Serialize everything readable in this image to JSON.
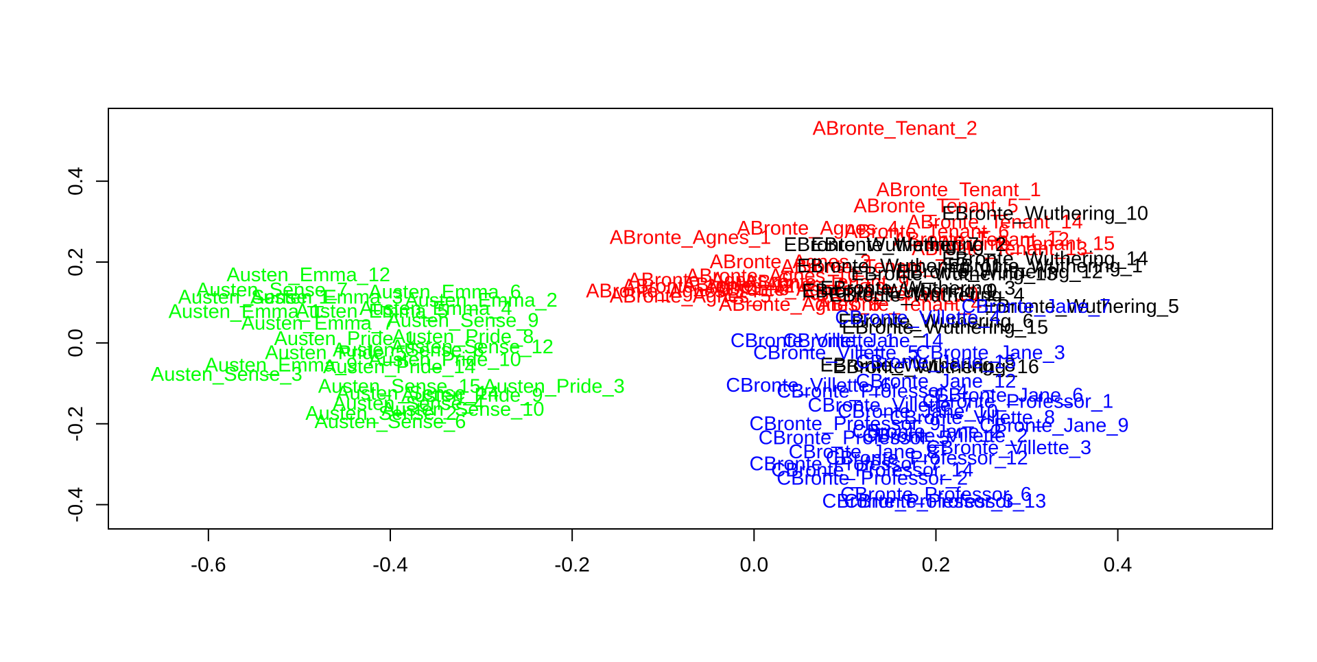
{
  "chart_data": {
    "type": "scatter",
    "title": "",
    "xlabel": "",
    "ylabel": "",
    "xlim": [
      -0.71,
      0.57
    ],
    "ylim": [
      -0.46,
      0.58
    ],
    "x_ticks": [
      "-0.6",
      "-0.4",
      "-0.2",
      "0.0",
      "0.2",
      "0.4"
    ],
    "y_ticks": [
      "-0.4",
      "-0.2",
      "0.0",
      "0.2",
      "0.4"
    ],
    "grid": false,
    "legend": "none",
    "colors": {
      "Austen": "#00ff00",
      "ABronte": "#ff0000",
      "CBronte": "#0000ff",
      "EBronte": "#000000",
      "axes": "#000000"
    },
    "series": [
      {
        "group": "Austen",
        "color": "#00ff00",
        "points": [
          {
            "label": "Austen_Emma_12",
            "x": -0.49,
            "y": 0.168
          },
          {
            "label": "Austen_Sense_7",
            "x": -0.53,
            "y": 0.13
          },
          {
            "label": "Austen_Emma_6",
            "x": -0.34,
            "y": 0.125
          },
          {
            "label": "Austen_Sense_1",
            "x": -0.55,
            "y": 0.113
          },
          {
            "label": "Austen_Emma_3",
            "x": -0.47,
            "y": 0.113
          },
          {
            "label": "Austen_Emma_2",
            "x": -0.3,
            "y": 0.105
          },
          {
            "label": "Austen_Emma_4",
            "x": -0.35,
            "y": 0.085
          },
          {
            "label": "Austen_Emma_1",
            "x": -0.56,
            "y": 0.077
          },
          {
            "label": "Austen_Emma_5",
            "x": -0.42,
            "y": 0.078
          },
          {
            "label": "Austen_Sense_9",
            "x": -0.32,
            "y": 0.055
          },
          {
            "label": "Austen_Emma_7",
            "x": -0.48,
            "y": 0.048
          },
          {
            "label": "Austen_Pride_8",
            "x": -0.32,
            "y": 0.015
          },
          {
            "label": "Austen_Pride_1",
            "x": -0.45,
            "y": 0.01
          },
          {
            "label": "Austen_Sense_12",
            "x": -0.31,
            "y": -0.01
          },
          {
            "label": "Austen_Sense_8",
            "x": -0.38,
            "y": -0.018
          },
          {
            "label": "Austen_Pride_5",
            "x": -0.46,
            "y": -0.025
          },
          {
            "label": "Austen_Pride_10",
            "x": -0.34,
            "y": -0.042
          },
          {
            "label": "Austen_Emma_9",
            "x": -0.52,
            "y": -0.055
          },
          {
            "label": "Austen_Pride_14",
            "x": -0.39,
            "y": -0.06
          },
          {
            "label": "Austen_Sense_3",
            "x": -0.58,
            "y": -0.078
          },
          {
            "label": "Austen_Pride_3",
            "x": -0.22,
            "y": -0.108
          },
          {
            "label": "Austen_Sense_15",
            "x": -0.39,
            "y": -0.108
          },
          {
            "label": "Austen_Sense_14",
            "x": -0.37,
            "y": -0.125
          },
          {
            "label": "Austen_Pride_9",
            "x": -0.31,
            "y": -0.13
          },
          {
            "label": "Austen_Sense_4",
            "x": -0.38,
            "y": -0.15
          },
          {
            "label": "Austen_Sense_10",
            "x": -0.32,
            "y": -0.165
          },
          {
            "label": "Austen_Sense_2",
            "x": -0.41,
            "y": -0.175
          },
          {
            "label": "Austen_Sense_6",
            "x": -0.4,
            "y": -0.195
          }
        ]
      },
      {
        "group": "ABronte",
        "color": "#ff0000",
        "points": [
          {
            "label": "ABronte_Tenant_2",
            "x": 0.155,
            "y": 0.53
          },
          {
            "label": "ABronte_Tenant_1",
            "x": 0.225,
            "y": 0.378
          },
          {
            "label": "ABronte_Tenant_5",
            "x": 0.2,
            "y": 0.338
          },
          {
            "label": "ABronte_Tenant_14",
            "x": 0.265,
            "y": 0.298
          },
          {
            "label": "ABronte_Agnes_4",
            "x": 0.07,
            "y": 0.283
          },
          {
            "label": "ABronte_Tenant_6",
            "x": 0.19,
            "y": 0.275
          },
          {
            "label": "ABronte_Agnes_1",
            "x": -0.07,
            "y": 0.26
          },
          {
            "label": "ABronte_Tenant_12",
            "x": 0.25,
            "y": 0.255
          },
          {
            "label": "ABronte_Tenant_15",
            "x": 0.3,
            "y": 0.245
          },
          {
            "label": "ABronte_Tenant_13",
            "x": 0.27,
            "y": 0.232
          },
          {
            "label": "ABronte_Agnes_2",
            "x": 0.04,
            "y": 0.2
          },
          {
            "label": "ABronte_Tenant_7",
            "x": 0.12,
            "y": 0.188
          },
          {
            "label": "ABronte_Agnes_10",
            "x": 0.02,
            "y": 0.165
          },
          {
            "label": "ABronte_Agnes_6",
            "x": -0.05,
            "y": 0.155
          },
          {
            "label": "ABronte_Tenant_9",
            "x": 0.08,
            "y": 0.15
          },
          {
            "label": "ABronte_Agnes_12",
            "x": -0.05,
            "y": 0.14
          },
          {
            "label": "ABronte_Agnes_7",
            "x": 0.01,
            "y": 0.143
          },
          {
            "label": "ABronte_Agnes_13",
            "x": 0.05,
            "y": 0.132
          },
          {
            "label": "ABronte_Tenant_10",
            "x": 0.15,
            "y": 0.12
          },
          {
            "label": "ABronte_Agnes_14",
            "x": -0.09,
            "y": 0.128
          },
          {
            "label": "ABronte_Agnes_5",
            "x": -0.07,
            "y": 0.115
          },
          {
            "label": "ABronte_Tenant_4",
            "x": 0.16,
            "y": 0.095
          },
          {
            "label": "ABronte_Agnes_8",
            "x": 0.05,
            "y": 0.095
          }
        ]
      },
      {
        "group": "EBronte",
        "color": "#000000",
        "points": [
          {
            "label": "EBronte_Wuthering_10",
            "x": 0.32,
            "y": 0.32
          },
          {
            "label": "EBronte_Wuthering_7",
            "x": 0.14,
            "y": 0.242
          },
          {
            "label": "EBronte_Wuthering_2",
            "x": 0.17,
            "y": 0.242
          },
          {
            "label": "EBronte_Wuthering_14",
            "x": 0.32,
            "y": 0.208
          },
          {
            "label": "EBronte_Wuthering_11",
            "x": 0.16,
            "y": 0.19
          },
          {
            "label": "EBronte_Wuthering_1",
            "x": 0.32,
            "y": 0.19
          },
          {
            "label": "EBronte_Wuthering_12",
            "x": 0.27,
            "y": 0.175
          },
          {
            "label": "EBronte_Wuthering_13",
            "x": 0.22,
            "y": 0.17
          },
          {
            "label": "EBronte_Wuthering_3",
            "x": 0.18,
            "y": 0.135
          },
          {
            "label": "EBronte_Wuthering_9",
            "x": 0.16,
            "y": 0.128
          },
          {
            "label": "EBronte_Wuthering_4",
            "x": 0.19,
            "y": 0.118
          },
          {
            "label": "EBronte_Wuthering_5",
            "x": 0.36,
            "y": 0.09
          },
          {
            "label": "EBronte_Wuthering_6",
            "x": 0.2,
            "y": 0.053
          },
          {
            "label": "EBronte_Wuthering_15",
            "x": 0.21,
            "y": 0.038
          },
          {
            "label": "EBronte_Wuthering_8",
            "x": 0.18,
            "y": -0.055
          },
          {
            "label": "EBronte_Wuthering_16",
            "x": 0.2,
            "y": -0.06
          }
        ]
      },
      {
        "group": "CBronte",
        "color": "#0000ff",
        "points": [
          {
            "label": "CBronte_Jane_7",
            "x": 0.31,
            "y": 0.09
          },
          {
            "label": "CBronte_Villette_4",
            "x": 0.18,
            "y": 0.062
          },
          {
            "label": "CBronte_Jane_14",
            "x": 0.12,
            "y": 0.005
          },
          {
            "label": "CBronte_Villette_1",
            "x": 0.065,
            "y": 0.005
          },
          {
            "label": "CBronte_Jane_3",
            "x": 0.26,
            "y": -0.025
          },
          {
            "label": "CBronte_Villette_5",
            "x": 0.09,
            "y": -0.025
          },
          {
            "label": "CBronte_Jane_15",
            "x": 0.2,
            "y": -0.048
          },
          {
            "label": "CBronte_Jane_12",
            "x": 0.2,
            "y": -0.095
          },
          {
            "label": "CBronte_Villette_6",
            "x": 0.06,
            "y": -0.105
          },
          {
            "label": "CBronte_Professor_4",
            "x": 0.13,
            "y": -0.12
          },
          {
            "label": "CBronte_Jane_6",
            "x": 0.28,
            "y": -0.13
          },
          {
            "label": "CBronte_Professor_1",
            "x": 0.29,
            "y": -0.145
          },
          {
            "label": "CBronte_Villette_7",
            "x": 0.15,
            "y": -0.155
          },
          {
            "label": "CBronte_Jane_10",
            "x": 0.18,
            "y": -0.17
          },
          {
            "label": "CBronte_Villette_8",
            "x": 0.24,
            "y": -0.185
          },
          {
            "label": "CBronte_Professor_9",
            "x": 0.1,
            "y": -0.2
          },
          {
            "label": "CBronte_Jane_9",
            "x": 0.33,
            "y": -0.205
          },
          {
            "label": "CBronte_Jane_2",
            "x": 0.19,
            "y": -0.22
          },
          {
            "label": "CBronte_Villette_2",
            "x": 0.21,
            "y": -0.23
          },
          {
            "label": "CBronte_Professor_5",
            "x": 0.11,
            "y": -0.235
          },
          {
            "label": "CBronte_Villette_3",
            "x": 0.28,
            "y": -0.26
          },
          {
            "label": "CBronte_Jane_8",
            "x": 0.12,
            "y": -0.27
          },
          {
            "label": "CBronte_Professor_12",
            "x": 0.19,
            "y": -0.285
          },
          {
            "label": "CBronte_Professor_7",
            "x": 0.1,
            "y": -0.3
          },
          {
            "label": "CBronte_Professor_14",
            "x": 0.13,
            "y": -0.315
          },
          {
            "label": "CBronte_Professor_2",
            "x": 0.13,
            "y": -0.335
          },
          {
            "label": "CBronte_Professor_6",
            "x": 0.2,
            "y": -0.375
          },
          {
            "label": "CBronte_Professor_3",
            "x": 0.18,
            "y": -0.392
          },
          {
            "label": "CBronte_Professor_13",
            "x": 0.21,
            "y": -0.392
          }
        ]
      }
    ]
  }
}
